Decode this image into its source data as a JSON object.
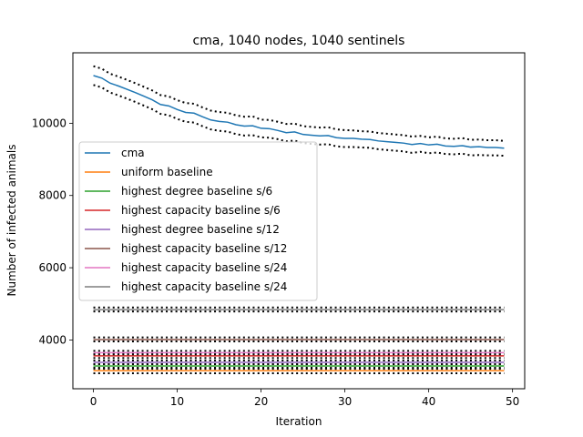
{
  "chart_data": {
    "type": "line",
    "title": "cma, 1040 nodes, 1040 sentinels",
    "xlabel": "Iteration",
    "ylabel": "Number of infected animals",
    "xlim": [
      -2.45,
      51.45
    ],
    "ylim": [
      2650,
      11950
    ],
    "xticks": [
      0,
      10,
      20,
      30,
      40,
      50
    ],
    "yticks": [
      4000,
      6000,
      8000,
      10000
    ],
    "grid": false,
    "legend_position": "center-left",
    "series": [
      {
        "name": "cma",
        "color": "#1f77b4",
        "x": [
          0,
          1,
          2,
          3,
          4,
          5,
          6,
          7,
          8,
          9,
          10,
          11,
          12,
          13,
          14,
          15,
          16,
          17,
          18,
          19,
          20,
          21,
          22,
          23,
          24,
          25,
          26,
          27,
          28,
          29,
          30,
          31,
          32,
          33,
          34,
          35,
          36,
          37,
          38,
          39,
          40,
          41,
          42,
          43,
          44,
          45,
          46,
          47,
          48,
          49
        ],
        "values": [
          11320,
          11250,
          11110,
          11030,
          10940,
          10850,
          10750,
          10650,
          10520,
          10480,
          10380,
          10300,
          10280,
          10180,
          10090,
          10050,
          10030,
          9960,
          9920,
          9930,
          9860,
          9850,
          9800,
          9740,
          9760,
          9690,
          9670,
          9650,
          9660,
          9600,
          9580,
          9580,
          9560,
          9550,
          9510,
          9490,
          9470,
          9450,
          9410,
          9440,
          9400,
          9420,
          9370,
          9360,
          9380,
          9340,
          9350,
          9330,
          9330,
          9310
        ],
        "upper": [
          11580,
          11510,
          11370,
          11290,
          11200,
          11110,
          11010,
          10910,
          10780,
          10740,
          10640,
          10560,
          10540,
          10440,
          10350,
          10310,
          10290,
          10220,
          10180,
          10190,
          10100,
          10090,
          10040,
          9980,
          9990,
          9920,
          9900,
          9880,
          9890,
          9830,
          9810,
          9800,
          9780,
          9770,
          9730,
          9710,
          9690,
          9670,
          9630,
          9650,
          9610,
          9630,
          9580,
          9570,
          9590,
          9540,
          9550,
          9530,
          9530,
          9510
        ],
        "lower": [
          11060,
          10990,
          10850,
          10770,
          10680,
          10590,
          10490,
          10390,
          10260,
          10220,
          10120,
          10040,
          10020,
          9920,
          9830,
          9790,
          9770,
          9700,
          9660,
          9670,
          9610,
          9600,
          9560,
          9500,
          9520,
          9450,
          9430,
          9410,
          9420,
          9360,
          9340,
          9340,
          9330,
          9320,
          9280,
          9260,
          9240,
          9220,
          9180,
          9210,
          9170,
          9190,
          9150,
          9140,
          9160,
          9110,
          9120,
          9110,
          9110,
          9100
        ]
      },
      {
        "name": "uniform baseline",
        "color": "#ff7f0e",
        "constant": 3150,
        "upper": 3200,
        "lower": 3080
      },
      {
        "name": "highest degree baseline s/6",
        "color": "#2ca02c",
        "constant": 3280,
        "upper": 3330,
        "lower": 3230
      },
      {
        "name": "highest capacity baseline s/6",
        "color": "#d62728",
        "constant": 3560,
        "upper": 3620,
        "lower": 3500
      },
      {
        "name": "highest degree baseline s/12",
        "color": "#9467bd",
        "constant": 3380,
        "upper": 3430,
        "lower": 3330
      },
      {
        "name": "highest capacity baseline s/12",
        "color": "#8c564b",
        "constant": 4010,
        "upper": 4070,
        "lower": 3960
      },
      {
        "name": "highest capacity baseline s/24",
        "color": "#e377c2",
        "constant": 3650,
        "upper": 3700,
        "lower": 3600
      },
      {
        "name": "highest capacity baseline s/24",
        "color": "#7f7f7f",
        "constant": 4840,
        "upper": 4900,
        "lower": 4790
      }
    ]
  }
}
